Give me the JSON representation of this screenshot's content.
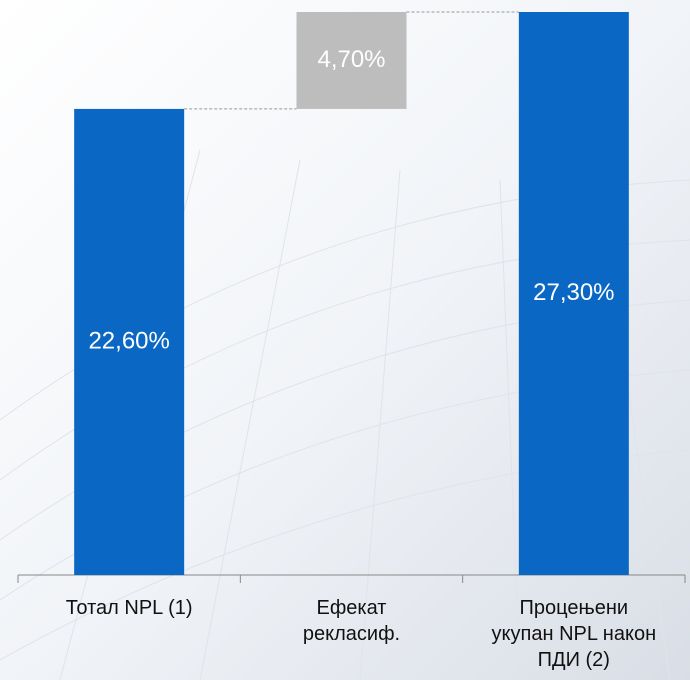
{
  "chart_data": {
    "type": "waterfall",
    "categories": [
      "Тотал NPL (1)",
      "Ефекат\nрекласиф.",
      "Процењени\nукупан NPL након\nПДИ (2)"
    ],
    "values": [
      22.6,
      4.7,
      27.3
    ],
    "value_labels": [
      "22,60%",
      "4,70%",
      "27,30%"
    ],
    "colors": [
      "#0b67c4",
      "#bdbdbd",
      "#0b67c4"
    ]
  }
}
